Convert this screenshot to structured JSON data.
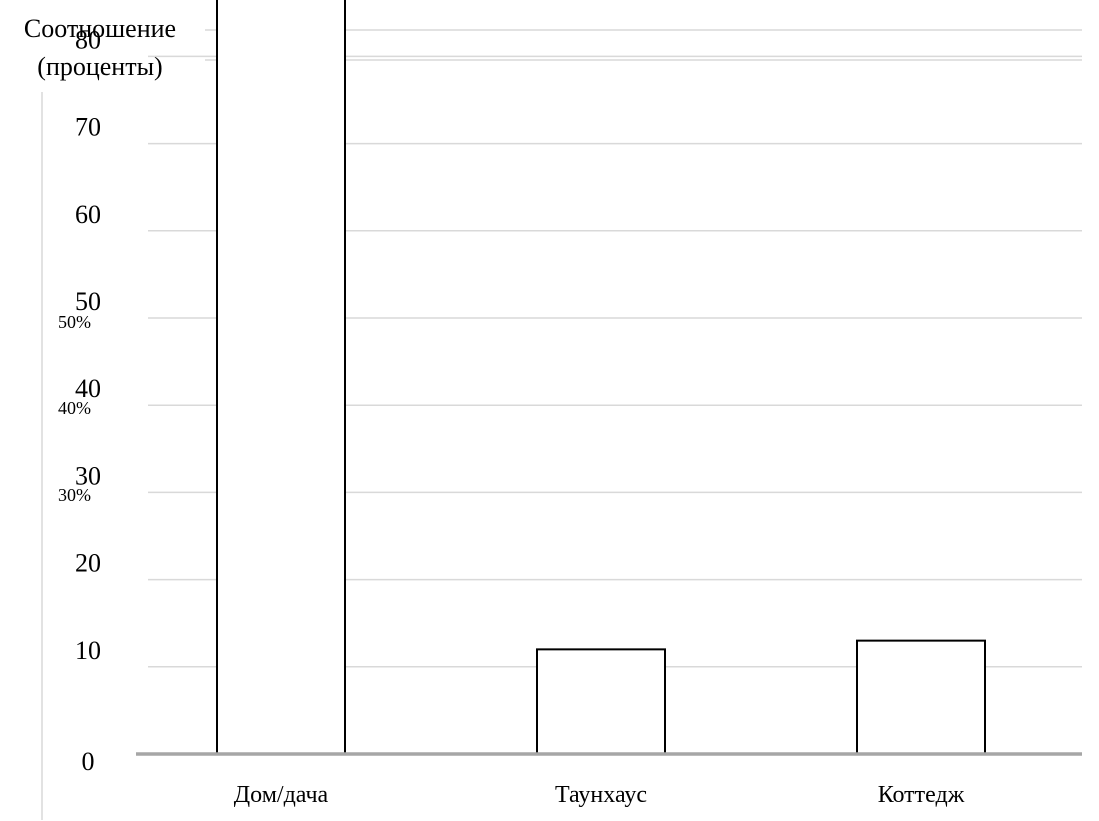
{
  "chart_data": {
    "type": "bar",
    "title": "",
    "xlabel": "",
    "ylabel": [
      "Соотношение",
      "(проценты)"
    ],
    "categories": [
      "Дом/дача",
      "Таунхаус",
      "Коттедж"
    ],
    "values": [
      87,
      12,
      13
    ],
    "yticks": [
      "0",
      "10",
      "20",
      "30",
      "40",
      "50",
      "60",
      "70",
      "80"
    ],
    "secondary_tick_artifacts": [
      "50%",
      "40%",
      "30%"
    ],
    "ylim": [
      0,
      90
    ],
    "grid": true,
    "legend": "none",
    "colors": {
      "bar_fill": "#ffffff",
      "bar_stroke": "#000000",
      "grid": "#d9d9d9",
      "baseline": "#a6a6a6"
    }
  }
}
